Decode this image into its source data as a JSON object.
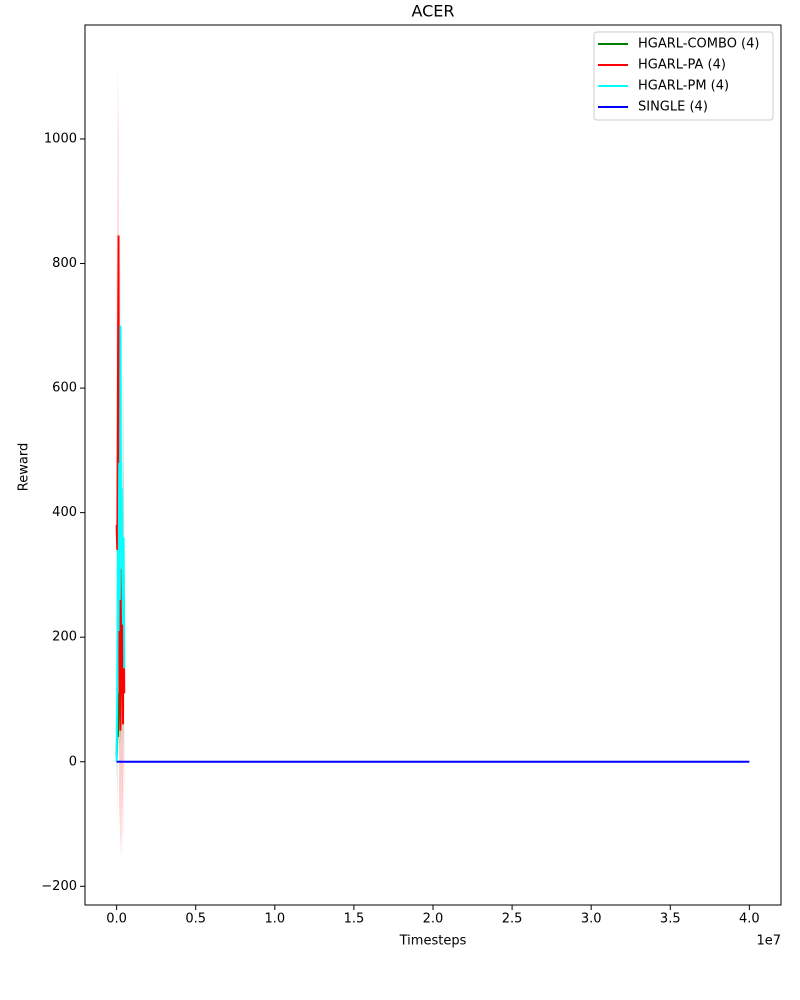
{
  "chart_data": {
    "type": "line",
    "title": "ACER",
    "x_label": "Timesteps",
    "y_label": "Reward",
    "x_offset_label": "1e7",
    "xlim": [
      -2000000,
      42000000
    ],
    "xticks": [
      {
        "value": 0,
        "label": "0.0"
      },
      {
        "value": 5000000,
        "label": "0.5"
      },
      {
        "value": 10000000,
        "label": "1.0"
      },
      {
        "value": 15000000,
        "label": "1.5"
      },
      {
        "value": 20000000,
        "label": "2.0"
      },
      {
        "value": 25000000,
        "label": "2.5"
      },
      {
        "value": 30000000,
        "label": "3.0"
      },
      {
        "value": 35000000,
        "label": "3.5"
      },
      {
        "value": 40000000,
        "label": "4.0"
      }
    ],
    "ylim": [
      -230,
      1183
    ],
    "yticks": [
      {
        "value": -200,
        "label": "−200"
      },
      0,
      200,
      400,
      600,
      800,
      1000
    ],
    "legend": "upper right",
    "series": [
      {
        "name": "HGARL-COMBO (4)",
        "color": "#008000",
        "x": [
          0,
          40000,
          80000,
          120000,
          160000,
          200000,
          240000,
          280000
        ],
        "values": [
          10,
          60,
          40,
          110,
          80,
          130,
          90,
          120
        ],
        "lower": [
          -20,
          10,
          0,
          40,
          20,
          60,
          30,
          50
        ],
        "upper": [
          40,
          110,
          90,
          180,
          140,
          200,
          150,
          190
        ]
      },
      {
        "name": "HGARL-PA (4)",
        "color": "#ff0000",
        "x": [
          0,
          40000,
          80000,
          120000,
          160000,
          200000,
          240000,
          280000,
          320000,
          360000,
          400000,
          440000,
          480000
        ],
        "values": [
          380,
          340,
          575,
          845,
          170,
          100,
          50,
          310,
          130,
          200,
          60,
          300,
          110
        ],
        "lower": [
          120,
          -120,
          300,
          550,
          -50,
          -100,
          -160,
          20,
          -150,
          -40,
          -160,
          50,
          -60
        ],
        "upper": [
          880,
          700,
          1120,
          1000,
          500,
          450,
          300,
          600,
          400,
          500,
          350,
          600,
          320
        ]
      },
      {
        "name": "HGARL-PM (4)",
        "color": "#00ffff",
        "x": [
          0,
          40000,
          80000,
          120000,
          160000,
          200000,
          240000,
          280000,
          320000,
          360000,
          400000,
          440000,
          480000
        ],
        "values": [
          0,
          120,
          340,
          210,
          480,
          260,
          700,
          360,
          440,
          300,
          220,
          360,
          150
        ],
        "lower": [
          -30,
          -50,
          100,
          0,
          150,
          50,
          300,
          100,
          150,
          50,
          0,
          100,
          -20
        ],
        "upper": [
          100,
          300,
          650,
          450,
          800,
          500,
          930,
          650,
          750,
          550,
          450,
          650,
          380
        ]
      },
      {
        "name": "SINGLE (4)",
        "color": "#0000ff",
        "x": [
          0,
          40000000
        ],
        "values": [
          0,
          0
        ]
      }
    ]
  }
}
